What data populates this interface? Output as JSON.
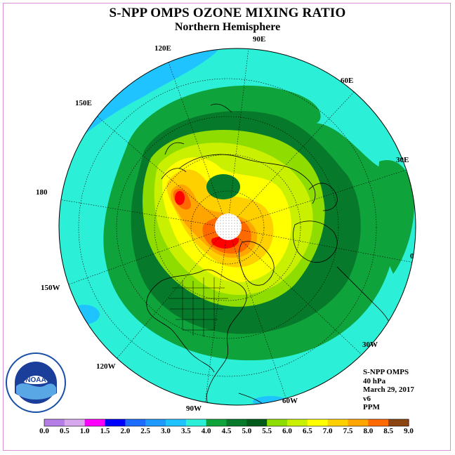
{
  "title": "S-NPP OMPS OZONE MIXING RATIO",
  "subtitle": "Northern Hemisphere",
  "info": {
    "instrument": "S-NPP OMPS",
    "level": "40 hPa",
    "date": "March 29, 2017",
    "version": "v6",
    "units": "PPM"
  },
  "longitude_labels": [
    "90E",
    "60E",
    "30E",
    "0",
    "30W",
    "60W",
    "90W",
    "120W",
    "150W",
    "180",
    "150E",
    "120E"
  ],
  "colorbar": {
    "ticks": [
      "0.0",
      "0.5",
      "1.0",
      "1.5",
      "2.0",
      "2.5",
      "3.0",
      "3.5",
      "4.0",
      "4.5",
      "5.0",
      "5.5",
      "6.0",
      "6.5",
      "7.0",
      "7.5",
      "8.0",
      "8.5",
      "9.0"
    ],
    "colors": [
      "#b57ee6",
      "#d8a8ee",
      "#ff00ff",
      "#0000ff",
      "#1e6cff",
      "#1e9aff",
      "#1ec3ff",
      "#2bf0d7",
      "#0fa33b",
      "#067a2a",
      "#005a1a",
      "#8fdc00",
      "#c8f000",
      "#ffff00",
      "#ffd000",
      "#ffa500",
      "#ff6a00",
      "#ff0000",
      "#8b4513"
    ]
  },
  "map": {
    "projection": "north polar stereographic",
    "field": "ozone mixing ratio",
    "max_region": "8.0-9.0 over Canadian Arctic / Greenland",
    "polar_missing": "no data near pole"
  }
}
